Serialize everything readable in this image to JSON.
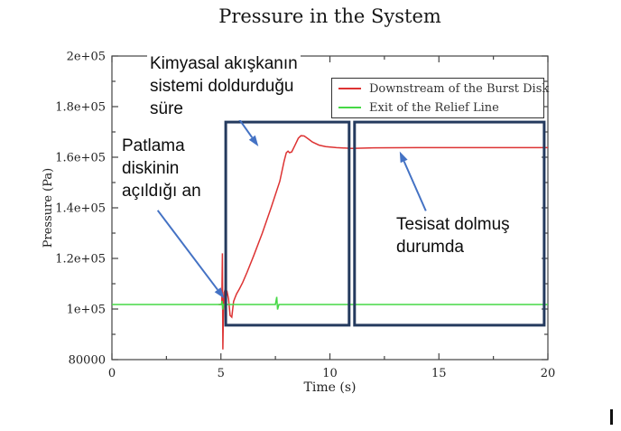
{
  "chart_data": {
    "type": "line",
    "title": "Pressure in the System",
    "xlabel": "Time (s)",
    "ylabel": "Pressure (Pa)",
    "xlim": [
      0,
      20
    ],
    "ylim": [
      80000,
      200000
    ],
    "grid": false,
    "x_major_ticks": [
      0,
      5,
      10,
      15,
      20
    ],
    "x_tick_labels": [
      "0",
      "5",
      "10",
      "15",
      "20"
    ],
    "x_minor_step": 2.5,
    "y_major_ticks": [
      80000,
      100000,
      120000,
      140000,
      160000,
      180000,
      200000
    ],
    "y_tick_labels": [
      "80000",
      "1e+05",
      "1.2e+05",
      "1.4e+05",
      "1.6e+05",
      "1.8e+05",
      "2e+05"
    ],
    "y_minor_step": 10000,
    "legend_position": "top-right-inside",
    "series": [
      {
        "name": "Downstream of the Burst Disk",
        "color": "#dd3333",
        "points": [
          [
            4.9,
            101800
          ],
          [
            5.04,
            101800
          ],
          [
            5.07,
            122000
          ],
          [
            5.09,
            84000
          ],
          [
            5.12,
            100000
          ],
          [
            5.15,
            106500
          ],
          [
            5.2,
            108000
          ],
          [
            5.28,
            107000
          ],
          [
            5.35,
            104000
          ],
          [
            5.42,
            97500
          ],
          [
            5.5,
            96800
          ],
          [
            5.58,
            103000
          ],
          [
            5.65,
            104500
          ],
          [
            5.72,
            106000
          ],
          [
            5.85,
            108000
          ],
          [
            6.0,
            110500
          ],
          [
            6.2,
            114500
          ],
          [
            6.5,
            121000
          ],
          [
            6.9,
            130000
          ],
          [
            7.3,
            140000
          ],
          [
            7.7,
            150500
          ],
          [
            7.9,
            158500
          ],
          [
            8.0,
            161800
          ],
          [
            8.08,
            162400
          ],
          [
            8.15,
            161800
          ],
          [
            8.25,
            162100
          ],
          [
            8.4,
            164800
          ],
          [
            8.55,
            167500
          ],
          [
            8.67,
            168500
          ],
          [
            8.82,
            168400
          ],
          [
            9.0,
            167300
          ],
          [
            9.2,
            166000
          ],
          [
            9.5,
            164800
          ],
          [
            9.8,
            164200
          ],
          [
            10.3,
            163800
          ],
          [
            11.0,
            163500
          ],
          [
            12.0,
            163700
          ],
          [
            14.0,
            163800
          ],
          [
            16.0,
            163800
          ],
          [
            18.0,
            163800
          ],
          [
            20.0,
            163800
          ]
        ]
      },
      {
        "name": "Exit of the Relief Line",
        "color": "#46d846",
        "points": [
          [
            0,
            101800
          ],
          [
            5.02,
            101800
          ],
          [
            5.05,
            103200
          ],
          [
            5.08,
            99800
          ],
          [
            5.12,
            101800
          ],
          [
            7.5,
            101800
          ],
          [
            7.56,
            104800
          ],
          [
            7.6,
            99800
          ],
          [
            7.66,
            101800
          ],
          [
            20,
            101800
          ]
        ]
      }
    ],
    "highlight_boxes": [
      {
        "name": "filling-period-box",
        "t": [
          5.22,
          10.88
        ],
        "p": [
          93600,
          173900
        ],
        "color": "#243a5e"
      },
      {
        "name": "filled-period-box",
        "t": [
          11.13,
          19.83
        ],
        "p": [
          93600,
          173900
        ],
        "color": "#243a5e"
      }
    ],
    "annotations": [
      {
        "id": "chemical-fill",
        "lines": [
          "Kimyasal akışkanın",
          "sistemi doldurduğu",
          "süre"
        ],
        "arrow": {
          "from": [
            5.22,
            182500
          ],
          "to": [
            6.72,
            164300
          ]
        }
      },
      {
        "id": "burst-disk-open",
        "lines": [
          "Patlama",
          "diskinin",
          "açıldığı an"
        ],
        "arrow": {
          "from": [
            2.1,
            139000
          ],
          "to": [
            5.15,
            104200
          ]
        }
      },
      {
        "id": "system-filled",
        "lines": [
          "Tesisat dolmuş",
          "durumda"
        ],
        "arrow": {
          "from": [
            14.4,
            138800
          ],
          "to": [
            13.2,
            162300
          ]
        }
      }
    ],
    "colors": {
      "axis": "#444444",
      "tick_text": "#222222",
      "arrow": "#4472c4",
      "box": "#243a5e"
    }
  }
}
